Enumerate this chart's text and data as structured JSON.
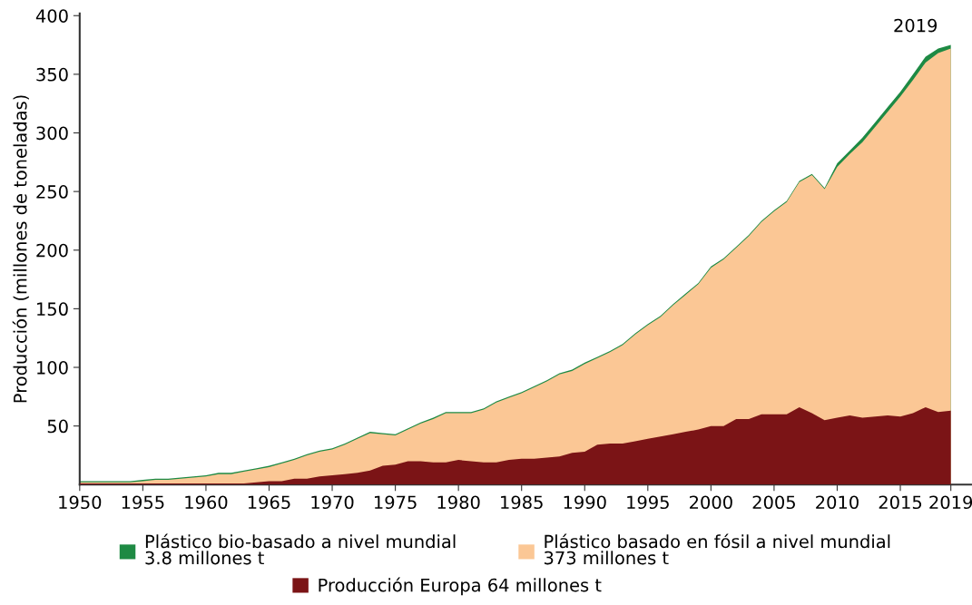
{
  "chart_data": {
    "type": "area",
    "ylabel": "Producción (millones de toneladas)",
    "x": [
      1950,
      1951,
      1952,
      1953,
      1954,
      1955,
      1956,
      1957,
      1958,
      1959,
      1960,
      1961,
      1962,
      1963,
      1964,
      1965,
      1966,
      1967,
      1968,
      1969,
      1970,
      1971,
      1972,
      1973,
      1974,
      1975,
      1976,
      1977,
      1978,
      1979,
      1980,
      1981,
      1982,
      1983,
      1984,
      1985,
      1986,
      1987,
      1988,
      1989,
      1990,
      1991,
      1992,
      1993,
      1994,
      1995,
      1996,
      1997,
      1998,
      1999,
      2000,
      2001,
      2002,
      2003,
      2004,
      2005,
      2006,
      2007,
      2008,
      2009,
      2010,
      2011,
      2012,
      2013,
      2014,
      2015,
      2016,
      2017,
      2018,
      2019
    ],
    "series": [
      {
        "name": "Plástico bio-basado a nivel mundial\n3.8 millones t",
        "color": "#1e8a44",
        "values": [
          3,
          3,
          3,
          3,
          3,
          4,
          5,
          5,
          6,
          7,
          8,
          10,
          10,
          12,
          14,
          16,
          19,
          22,
          26,
          29,
          31,
          35,
          40,
          45,
          44,
          43,
          48,
          53,
          57,
          62,
          62,
          62,
          65,
          71,
          75,
          79,
          84,
          89,
          95,
          98,
          104,
          109,
          114,
          120,
          129,
          137,
          144,
          154,
          163,
          172,
          186,
          193,
          203,
          213,
          225,
          234,
          242,
          259,
          265,
          253,
          274,
          285,
          296,
          309,
          322,
          335,
          350,
          365,
          372,
          375
        ]
      },
      {
        "name": "Plástico basado en fósil a nivel mundial\n373 millones t",
        "color": "#fbc795",
        "values": [
          2,
          2,
          2,
          2,
          2,
          3,
          4,
          4,
          5,
          6,
          7,
          9,
          9,
          11,
          13,
          15,
          18,
          21,
          25,
          28,
          30,
          34,
          39,
          44,
          43,
          42,
          47,
          52,
          56,
          61,
          61,
          61,
          64,
          70,
          74,
          78,
          83,
          88,
          94,
          97,
          103,
          108,
          113,
          119,
          128,
          136,
          143,
          153,
          162,
          171,
          185,
          192,
          202,
          212,
          224,
          233,
          241,
          258,
          264,
          252,
          271,
          282,
          292,
          305,
          318,
          331,
          345,
          360,
          368,
          372
        ]
      },
      {
        "name": "Producción Europa 64 millones t",
        "color": "#7b1416",
        "values": [
          1,
          1,
          1,
          1,
          1,
          1,
          1,
          1,
          1,
          1,
          1,
          1,
          1,
          1,
          2,
          3,
          3,
          5,
          5,
          7,
          8,
          9,
          10,
          12,
          16,
          17,
          20,
          20,
          19,
          19,
          21,
          20,
          19,
          19,
          21,
          22,
          22,
          23,
          24,
          27,
          28,
          34,
          35,
          35,
          37,
          39,
          41,
          43,
          45,
          47,
          50,
          50,
          56,
          56,
          60,
          60,
          60,
          66,
          61,
          55,
          57,
          59,
          57,
          58,
          59,
          58,
          61,
          66,
          62,
          63
        ]
      }
    ],
    "xlim": [
      1950,
      2020.6
    ],
    "xticks": [
      1950,
      1955,
      1960,
      1965,
      1970,
      1975,
      1980,
      1985,
      1990,
      1995,
      2000,
      2005,
      2010,
      2015,
      2019
    ],
    "ylim": [
      0,
      402
    ],
    "yticks": [
      50,
      100,
      150,
      200,
      250,
      300,
      350,
      400
    ],
    "annotations": [
      {
        "text": "2019",
        "x": 2019,
        "y": 375
      }
    ],
    "legend": "bottom",
    "grid": false
  }
}
